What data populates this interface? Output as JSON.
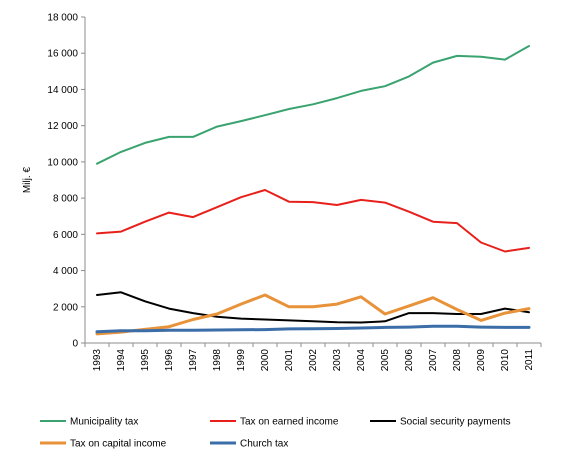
{
  "chart_data": {
    "type": "line",
    "ylabel": "Milj. €",
    "ylim": [
      0,
      18000
    ],
    "yticks": [
      0,
      2000,
      4000,
      6000,
      8000,
      10000,
      12000,
      14000,
      16000,
      18000
    ],
    "ytick_labels": [
      "0",
      "2 000",
      "4 000",
      "6 000",
      "8 000",
      "10 000",
      "12 000",
      "14 000",
      "16 000",
      "18 000"
    ],
    "categories": [
      "1993",
      "1994",
      "1995",
      "1996",
      "1997",
      "1998",
      "1999",
      "2000",
      "2001",
      "2002",
      "2003",
      "2004",
      "2005",
      "2006",
      "2007",
      "2008",
      "2009",
      "2010",
      "2011"
    ],
    "grid": false,
    "legend_position": "bottom",
    "series": [
      {
        "name": "Municipality tax",
        "color": "#3aa36f",
        "values": [
          9900,
          10550,
          11050,
          11380,
          11380,
          11950,
          12250,
          12580,
          12920,
          13180,
          13520,
          13920,
          14180,
          14720,
          15480,
          15850,
          15800,
          15650,
          16400
        ]
      },
      {
        "name": "Tax on earned income",
        "color": "#e8201c",
        "values": [
          6050,
          6150,
          6700,
          7200,
          6950,
          7500,
          8050,
          8450,
          7800,
          7780,
          7620,
          7900,
          7750,
          7250,
          6700,
          6620,
          5550,
          5050,
          5250
        ]
      },
      {
        "name": "Social security payments",
        "color": "#000000",
        "values": [
          2650,
          2800,
          2300,
          1900,
          1650,
          1450,
          1350,
          1300,
          1250,
          1200,
          1150,
          1130,
          1200,
          1650,
          1650,
          1600,
          1600,
          1900,
          1700
        ]
      },
      {
        "name": "Tax on capital income",
        "color": "#e8923a",
        "values": [
          500,
          600,
          750,
          900,
          1300,
          1600,
          2150,
          2650,
          2000,
          2000,
          2150,
          2550,
          1600,
          2050,
          2500,
          1850,
          1250,
          1650,
          1900
        ]
      },
      {
        "name": "Church tax",
        "color": "#3b6ea8",
        "values": [
          620,
          680,
          680,
          700,
          700,
          720,
          730,
          740,
          780,
          790,
          800,
          830,
          860,
          880,
          920,
          920,
          880,
          860,
          860
        ]
      }
    ]
  }
}
